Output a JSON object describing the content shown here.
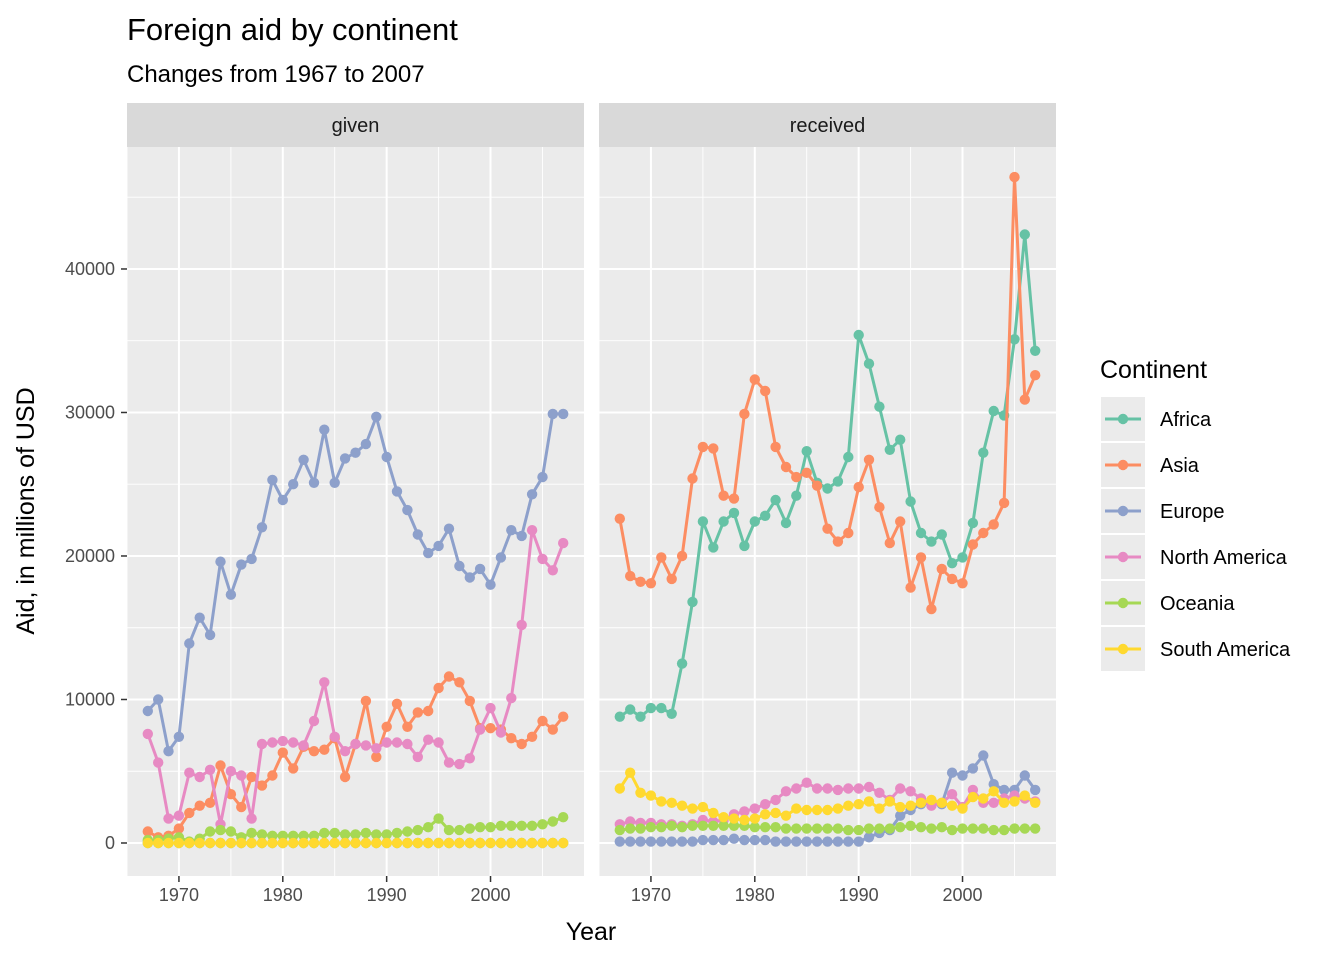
{
  "title": "Foreign aid by continent",
  "subtitle": "Changes from 1967 to 2007",
  "colors": {
    "panel_bg": "#ebebeb",
    "grid": "#ffffff",
    "strip_bg": "#d9d9d9",
    "legend_key_bg": "#ebebeb"
  },
  "chart_data": {
    "type": "line",
    "xlabel": "Year",
    "ylabel": "Aid, in millions of USD",
    "xlim": [
      1965,
      2009
    ],
    "ylim": [
      -2300,
      48500
    ],
    "x_ticks": [
      1970,
      1980,
      1990,
      2000
    ],
    "x_tick_labels": [
      "1970",
      "1980",
      "1990",
      "2000"
    ],
    "y_ticks": [
      0,
      10000,
      20000,
      30000,
      40000
    ],
    "y_tick_labels": [
      "0",
      "10000",
      "20000",
      "30000",
      "40000"
    ],
    "grid": true,
    "markers": true,
    "legend_position": "right",
    "legend": {
      "title": "Continent",
      "entries": [
        "Africa",
        "Asia",
        "Europe",
        "North America",
        "Oceania",
        "South America"
      ],
      "colors": [
        "#66c2a5",
        "#fc8d62",
        "#8da0cb",
        "#e78ac3",
        "#a6d854",
        "#ffd92f"
      ]
    },
    "x": [
      1967,
      1968,
      1969,
      1970,
      1971,
      1972,
      1973,
      1974,
      1975,
      1976,
      1977,
      1978,
      1979,
      1980,
      1981,
      1982,
      1983,
      1984,
      1985,
      1986,
      1987,
      1988,
      1989,
      1990,
      1991,
      1992,
      1993,
      1994,
      1995,
      1996,
      1997,
      1998,
      1999,
      2000,
      2001,
      2002,
      2003,
      2004,
      2005,
      2006,
      2007
    ],
    "facets": [
      {
        "label": "given",
        "series": [
          {
            "name": "Africa",
            "values": [
              0,
              0,
              0,
              0,
              0,
              0,
              0,
              0,
              0,
              0,
              0,
              0,
              0,
              0,
              0,
              0,
              0,
              0,
              0,
              0,
              0,
              0,
              0,
              0,
              0,
              0,
              0,
              0,
              0,
              0,
              0,
              0,
              0,
              0,
              0,
              0,
              0,
              0,
              0,
              0,
              0
            ]
          },
          {
            "name": "Asia",
            "values": [
              800,
              400,
              500,
              1000,
              2100,
              2600,
              2800,
              5400,
              3400,
              2500,
              4600,
              4000,
              4700,
              6300,
              5200,
              6700,
              6400,
              6500,
              7300,
              4600,
              6900,
              9900,
              6000,
              8100,
              9700,
              8100,
              9100,
              9200,
              10800,
              11600,
              11200,
              9900,
              8000,
              8000,
              7900,
              7300,
              6900,
              7400,
              8500,
              7900,
              8800
            ]
          },
          {
            "name": "Europe",
            "values": [
              9200,
              10000,
              6400,
              7400,
              13900,
              15700,
              14500,
              19600,
              17300,
              19400,
              19800,
              22000,
              25300,
              23900,
              25000,
              26700,
              25100,
              28800,
              25100,
              26800,
              27200,
              27800,
              29700,
              26900,
              24500,
              23200,
              21500,
              20200,
              20700,
              21900,
              19300,
              18500,
              19100,
              18000,
              19900,
              21800,
              21400,
              24300,
              25500,
              29900,
              29900
            ]
          },
          {
            "name": "North America",
            "values": [
              7600,
              5600,
              1700,
              1900,
              4900,
              4600,
              5100,
              1300,
              5000,
              4700,
              1700,
              6900,
              7000,
              7100,
              7000,
              6800,
              8500,
              11200,
              7400,
              6400,
              6900,
              6800,
              6600,
              7000,
              7000,
              6900,
              6000,
              7200,
              7000,
              5600,
              5500,
              5900,
              7900,
              9400,
              7700,
              10100,
              15200,
              21800,
              19800,
              19000,
              20900
            ]
          },
          {
            "name": "Oceania",
            "values": [
              200,
              200,
              300,
              400,
              100,
              300,
              800,
              900,
              800,
              400,
              700,
              600,
              500,
              500,
              500,
              500,
              500,
              700,
              700,
              600,
              600,
              700,
              600,
              600,
              700,
              800,
              900,
              1100,
              1700,
              900,
              900,
              1000,
              1100,
              1100,
              1200,
              1200,
              1200,
              1200,
              1300,
              1500,
              1800
            ]
          },
          {
            "name": "South America",
            "values": [
              0,
              0,
              0,
              0,
              0,
              0,
              0,
              0,
              0,
              0,
              0,
              0,
              0,
              0,
              0,
              0,
              0,
              0,
              0,
              0,
              0,
              0,
              0,
              0,
              0,
              0,
              0,
              0,
              0,
              0,
              0,
              0,
              0,
              0,
              0,
              0,
              0,
              0,
              0,
              0,
              0
            ]
          }
        ]
      },
      {
        "label": "received",
        "series": [
          {
            "name": "Africa",
            "values": [
              8800,
              9300,
              8800,
              9400,
              9400,
              9000,
              12500,
              16800,
              22400,
              20600,
              22400,
              23000,
              20700,
              22400,
              22800,
              23900,
              22300,
              24200,
              27300,
              25100,
              24700,
              25200,
              26900,
              35400,
              33400,
              30400,
              27400,
              28100,
              23800,
              21600,
              21000,
              21500,
              19500,
              19900,
              22300,
              27200,
              30100,
              29800,
              35100,
              42400,
              34300
            ]
          },
          {
            "name": "Asia",
            "values": [
              22600,
              18600,
              18200,
              18100,
              19900,
              18400,
              20000,
              25400,
              27600,
              27500,
              24200,
              24000,
              29900,
              32300,
              31500,
              27600,
              26200,
              25500,
              25800,
              24900,
              21900,
              21000,
              21600,
              24800,
              26700,
              23400,
              20900,
              22400,
              17800,
              19900,
              16300,
              19100,
              18400,
              18100,
              20800,
              21600,
              22200,
              23700,
              46400,
              30900,
              32600
            ]
          },
          {
            "name": "Europe",
            "values": [
              100,
              100,
              100,
              100,
              100,
              100,
              100,
              100,
              200,
              200,
              200,
              300,
              200,
              200,
              200,
              100,
              100,
              100,
              100,
              100,
              100,
              100,
              100,
              100,
              400,
              700,
              900,
              1900,
              2300,
              2700,
              2800,
              2700,
              4900,
              4700,
              5200,
              6100,
              4100,
              3700,
              3700,
              4700,
              3700
            ]
          },
          {
            "name": "North America",
            "values": [
              1300,
              1500,
              1400,
              1400,
              1300,
              1300,
              1200,
              1300,
              1600,
              1500,
              1600,
              2000,
              2200,
              2400,
              2700,
              3000,
              3600,
              3800,
              4200,
              3800,
              3800,
              3700,
              3800,
              3800,
              3900,
              3500,
              3000,
              3800,
              3600,
              3100,
              2600,
              2800,
              3400,
              2500,
              3700,
              2800,
              2800,
              3100,
              3300,
              3100,
              2900
            ]
          },
          {
            "name": "Oceania",
            "values": [
              900,
              1000,
              1000,
              1100,
              1100,
              1200,
              1100,
              1200,
              1200,
              1200,
              1200,
              1200,
              1200,
              1100,
              1100,
              1100,
              1000,
              1000,
              1000,
              1000,
              1000,
              1000,
              900,
              900,
              1000,
              1000,
              1000,
              1100,
              1200,
              1100,
              1000,
              1100,
              900,
              1000,
              1000,
              1000,
              900,
              900,
              1000,
              1000,
              1000
            ]
          },
          {
            "name": "South America",
            "values": [
              3800,
              4900,
              3500,
              3300,
              2900,
              2800,
              2600,
              2400,
              2500,
              2100,
              1800,
              1700,
              1600,
              1700,
              2000,
              2100,
              1900,
              2400,
              2300,
              2300,
              2300,
              2400,
              2600,
              2700,
              2900,
              2400,
              2900,
              2500,
              2600,
              2800,
              3000,
              2800,
              2600,
              2400,
              3200,
              3100,
              3600,
              2800,
              2900,
              3300,
              2800
            ]
          }
        ]
      }
    ]
  }
}
